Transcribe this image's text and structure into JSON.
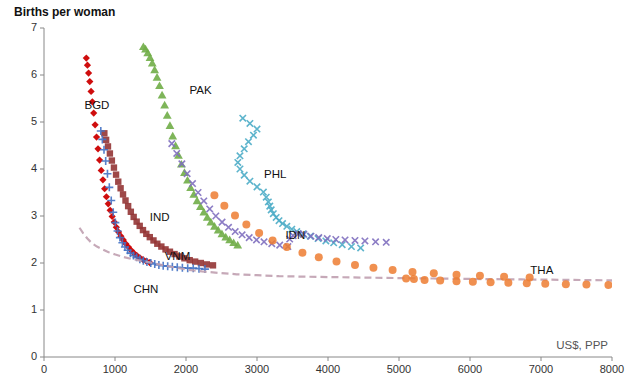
{
  "chart_data": {
    "type": "scatter",
    "ylabel": "Births per woman",
    "xlabel": "US$, PPP",
    "xlim": [
      0,
      8000
    ],
    "ylim": [
      0,
      7
    ],
    "xticks": [
      0,
      1000,
      2000,
      3000,
      4000,
      5000,
      6000,
      7000,
      8000
    ],
    "yticks": [
      0,
      1,
      2,
      3,
      4,
      5,
      6,
      7
    ],
    "grid": false,
    "series": [
      {
        "type": "scatter",
        "marker": "diamond",
        "color": "#cc0000",
        "x": [
          596,
          612,
          628,
          645,
          663,
          681,
          700,
          720,
          740,
          761,
          783,
          806,
          830,
          854,
          879,
          905,
          932,
          960,
          989,
          1019,
          1050,
          1083,
          1117,
          1152,
          1189,
          1227,
          1267,
          1308,
          1351,
          1395,
          1441,
          1489
        ],
        "values": [
          6.36,
          6.21,
          6.04,
          5.86,
          5.65,
          5.43,
          5.19,
          4.94,
          4.68,
          4.43,
          4.19,
          3.97,
          3.77,
          3.58,
          3.41,
          3.26,
          3.12,
          2.99,
          2.87,
          2.76,
          2.66,
          2.57,
          2.49,
          2.41,
          2.34,
          2.27,
          2.21,
          2.16,
          2.11,
          2.07,
          2.04,
          2.01
        ]
      },
      {
        "type": "scatter",
        "marker": "triangle",
        "color": "#70ad47",
        "x": [
          1400,
          1430,
          1461,
          1493,
          1525,
          1558,
          1592,
          1627,
          1663,
          1699,
          1736,
          1774,
          1813,
          1853,
          1894,
          1935,
          1978,
          2021,
          2065,
          2110,
          2156,
          2203,
          2251,
          2300,
          2350,
          2401,
          2453,
          2506,
          2560,
          2615,
          2671,
          2728
        ],
        "values": [
          6.6,
          6.55,
          6.47,
          6.37,
          6.25,
          6.11,
          5.95,
          5.77,
          5.57,
          5.36,
          5.14,
          4.92,
          4.7,
          4.49,
          4.29,
          4.1,
          3.92,
          3.76,
          3.6,
          3.46,
          3.32,
          3.2,
          3.08,
          2.97,
          2.87,
          2.78,
          2.7,
          2.62,
          2.55,
          2.49,
          2.43,
          2.38
        ]
      },
      {
        "type": "scatter",
        "marker": "x",
        "color": "#4bacc6",
        "x": [
          2800,
          2900,
          3000,
          2950,
          2880,
          2820,
          2760,
          2730,
          2760,
          2820,
          2900,
          3000,
          3090,
          3130,
          3160,
          3180,
          3200,
          3230,
          3270,
          3310,
          3360,
          3420,
          3490,
          3560,
          3650,
          3750,
          3860,
          3970,
          4080,
          4200,
          4330,
          4460
        ],
        "values": [
          5.08,
          4.97,
          4.85,
          4.72,
          4.58,
          4.43,
          4.28,
          4.14,
          4.0,
          3.87,
          3.74,
          3.62,
          3.51,
          3.4,
          3.3,
          3.21,
          3.13,
          3.05,
          2.97,
          2.9,
          2.84,
          2.78,
          2.72,
          2.67,
          2.62,
          2.57,
          2.52,
          2.47,
          2.43,
          2.39,
          2.35,
          2.32
        ]
      },
      {
        "type": "scatter",
        "marker": "x",
        "color": "#7f6fbf",
        "x": [
          1800,
          1870,
          1942,
          2016,
          2092,
          2170,
          2251,
          2334,
          2420,
          2508,
          2599,
          2693,
          2790,
          2890,
          2993,
          3099,
          3208,
          3320,
          3435,
          3460,
          3510,
          3580,
          3660,
          3760,
          3870,
          3990,
          4110,
          4240,
          4380,
          4520,
          4670,
          4820
        ],
        "values": [
          4.54,
          4.33,
          4.11,
          3.9,
          3.69,
          3.5,
          3.32,
          3.15,
          3.0,
          2.87,
          2.76,
          2.67,
          2.6,
          2.54,
          2.49,
          2.45,
          2.41,
          2.38,
          2.35,
          2.51,
          2.58,
          2.62,
          2.61,
          2.57,
          2.54,
          2.52,
          2.5,
          2.49,
          2.48,
          2.47,
          2.45,
          2.44
        ]
      },
      {
        "type": "scatter",
        "marker": "square",
        "color": "#943434",
        "x": [
          850,
          875,
          901,
          928,
          956,
          985,
          1015,
          1046,
          1079,
          1113,
          1148,
          1185,
          1223,
          1263,
          1305,
          1348,
          1394,
          1441,
          1490,
          1542,
          1596,
          1653,
          1712,
          1774,
          1839,
          1907,
          1978,
          2052,
          2129,
          2209,
          2293,
          2380
        ],
        "values": [
          4.76,
          4.62,
          4.48,
          4.33,
          4.18,
          4.03,
          3.88,
          3.73,
          3.59,
          3.46,
          3.33,
          3.21,
          3.09,
          2.98,
          2.88,
          2.79,
          2.7,
          2.62,
          2.55,
          2.48,
          2.41,
          2.35,
          2.29,
          2.24,
          2.19,
          2.14,
          2.1,
          2.06,
          2.03,
          2.0,
          1.97,
          1.95
        ]
      },
      {
        "type": "scatter",
        "marker": "plus",
        "color": "#4472c4",
        "x": [
          800,
          822,
          845,
          869,
          894,
          920,
          947,
          975,
          1005,
          1036,
          1069,
          1104,
          1140,
          1178,
          1218,
          1260,
          1304,
          1350,
          1399,
          1450,
          1504,
          1560,
          1618,
          1679,
          1742,
          1808,
          1877,
          1949,
          2024,
          2102,
          2183,
          2267
        ],
        "values": [
          4.81,
          4.63,
          4.41,
          4.17,
          3.9,
          3.61,
          3.33,
          3.08,
          2.86,
          2.68,
          2.54,
          2.43,
          2.34,
          2.27,
          2.21,
          2.16,
          2.12,
          2.08,
          2.05,
          2.02,
          2.0,
          1.98,
          1.96,
          1.94,
          1.93,
          1.92,
          1.91,
          1.9,
          1.89,
          1.89,
          1.88,
          1.87
        ]
      },
      {
        "type": "line",
        "line_style": "dashed",
        "color": "#c0a0b0",
        "x": [
          500,
          553,
          611,
          675,
          746,
          824,
          910,
          1005,
          1110,
          1226,
          1354,
          1496,
          1652,
          1824,
          2015,
          2225,
          2457,
          2714,
          2996,
          3311,
          3658,
          4044,
          4473,
          4949,
          5477,
          6067,
          6723,
          7452,
          8000,
          8000,
          8000,
          8000
        ],
        "values": [
          2.75,
          2.63,
          2.52,
          2.42,
          2.35,
          2.29,
          2.23,
          2.18,
          2.13,
          2.09,
          2.05,
          2.01,
          1.96,
          1.91,
          1.86,
          1.82,
          1.79,
          1.76,
          1.74,
          1.72,
          1.71,
          1.7,
          1.69,
          1.68,
          1.67,
          1.66,
          1.65,
          1.64,
          1.63,
          1.62,
          1.61,
          1.6
        ]
      },
      {
        "type": "scatter",
        "marker": "circle",
        "color": "#ed7d31",
        "x": [
          2400,
          2540,
          2690,
          2850,
          3030,
          3220,
          3420,
          3640,
          3870,
          4120,
          4380,
          4640,
          4910,
          5190,
          5490,
          5810,
          6140,
          6480,
          6840,
          5100,
          5210,
          5360,
          5580,
          5810,
          6040,
          6290,
          6540,
          6800,
          7060,
          7350,
          7640,
          7950
        ],
        "values": [
          3.44,
          3.22,
          3.01,
          2.82,
          2.64,
          2.48,
          2.34,
          2.22,
          2.12,
          2.03,
          1.96,
          1.9,
          1.85,
          1.81,
          1.78,
          1.75,
          1.73,
          1.71,
          1.69,
          1.67,
          1.66,
          1.64,
          1.63,
          1.61,
          1.6,
          1.59,
          1.58,
          1.57,
          1.56,
          1.55,
          1.54,
          1.53
        ]
      }
    ],
    "annotations": [
      {
        "text": "BGD",
        "x": 570,
        "y": 5.35
      },
      {
        "text": "PAK",
        "x": 2050,
        "y": 5.65
      },
      {
        "text": "PHL",
        "x": 3100,
        "y": 3.88
      },
      {
        "text": "IDN",
        "x": 3400,
        "y": 2.57
      },
      {
        "text": "IND",
        "x": 1490,
        "y": 2.95
      },
      {
        "text": "VNM",
        "x": 1700,
        "y": 2.13
      },
      {
        "text": "CHN",
        "x": 1260,
        "y": 1.42
      },
      {
        "text": "THA",
        "x": 6850,
        "y": 1.83
      }
    ]
  }
}
